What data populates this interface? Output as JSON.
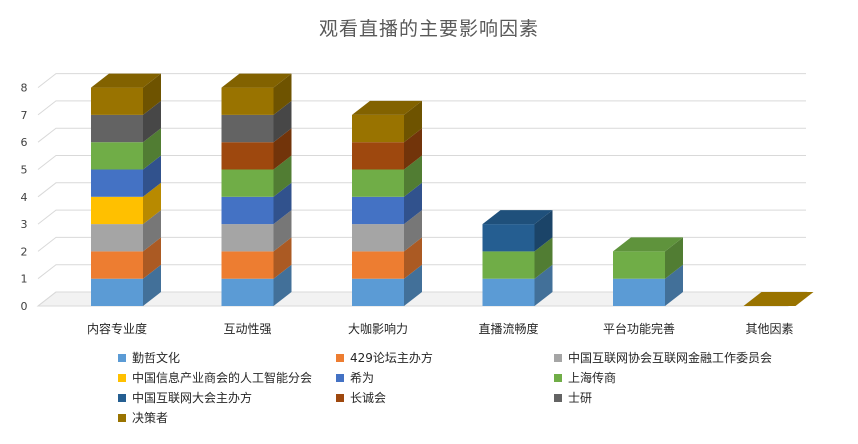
{
  "chart_data": {
    "type": "bar",
    "stacked": true,
    "three_d": true,
    "title": "观看直播的主要影响因素",
    "categories": [
      "内容专业度",
      "互动性强",
      "大咖影响力",
      "直播流畅度",
      "平台功能完善",
      "其他因素"
    ],
    "ylim": [
      0,
      8
    ],
    "yticks": [
      0,
      1,
      2,
      3,
      4,
      5,
      6,
      7,
      8
    ],
    "legend_position": "bottom",
    "gridlines": true,
    "series": [
      {
        "name": "勤哲文化",
        "color": "#5B9BD5",
        "values": [
          1,
          1,
          1,
          1,
          1,
          0
        ]
      },
      {
        "name": "429论坛主办方",
        "color": "#ED7D31",
        "values": [
          1,
          1,
          1,
          0,
          0,
          0
        ]
      },
      {
        "name": "中国互联网协会互联网金融工作委员会",
        "color": "#A5A5A5",
        "values": [
          1,
          1,
          1,
          0,
          0,
          0
        ]
      },
      {
        "name": "中国信息产业商会的人工智能分会",
        "color": "#FFC000",
        "values": [
          1,
          0,
          0,
          0,
          0,
          0
        ]
      },
      {
        "name": "希为",
        "color": "#4472C4",
        "values": [
          1,
          1,
          1,
          0,
          0,
          0
        ]
      },
      {
        "name": "上海传商",
        "color": "#70AD47",
        "values": [
          1,
          1,
          1,
          1,
          1,
          0
        ]
      },
      {
        "name": "中国互联网大会主办方",
        "color": "#255E91",
        "values": [
          0,
          0,
          0,
          1,
          0,
          0
        ]
      },
      {
        "name": "长诚会",
        "color": "#9E480E",
        "values": [
          0,
          1,
          1,
          0,
          0,
          0
        ]
      },
      {
        "name": "士研",
        "color": "#636363",
        "values": [
          1,
          1,
          0,
          0,
          0,
          0
        ]
      },
      {
        "name": "决策者",
        "color": "#997300",
        "values": [
          1,
          1,
          1,
          0,
          0,
          0
        ]
      }
    ]
  }
}
